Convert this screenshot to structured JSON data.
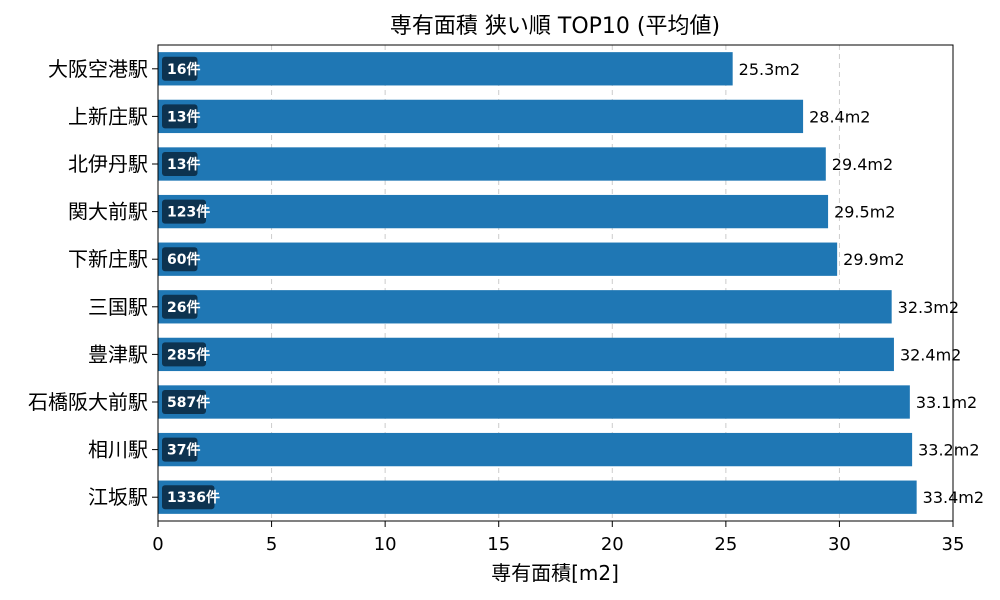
{
  "chart_data": {
    "type": "bar",
    "orientation": "horizontal",
    "title": "専有面積 狭い順 TOP10 (平均値)",
    "xlabel": "専有面積[m2]",
    "ylabel": "",
    "xlim": [
      0,
      35
    ],
    "xticks": [
      0,
      5,
      10,
      15,
      20,
      25,
      30,
      35
    ],
    "grid": "x-dashed",
    "categories": [
      "大阪空港駅",
      "上新庄駅",
      "北伊丹駅",
      "関大前駅",
      "下新庄駅",
      "三国駅",
      "豊津駅",
      "石橋阪大前駅",
      "相川駅",
      "江坂駅"
    ],
    "values": [
      25.3,
      28.4,
      29.4,
      29.5,
      29.9,
      32.3,
      32.4,
      33.1,
      33.2,
      33.4
    ],
    "value_labels": [
      "25.3m2",
      "28.4m2",
      "29.4m2",
      "29.5m2",
      "29.9m2",
      "32.3m2",
      "32.4m2",
      "33.1m2",
      "33.2m2",
      "33.4m2"
    ],
    "counts": [
      "16件",
      "13件",
      "13件",
      "123件",
      "60件",
      "26件",
      "285件",
      "587件",
      "37件",
      "1336件"
    ],
    "colors": {
      "bar": "#1f77b4",
      "badge": "#0d3350",
      "grid": "#cccccc",
      "axis": "#000000"
    }
  }
}
